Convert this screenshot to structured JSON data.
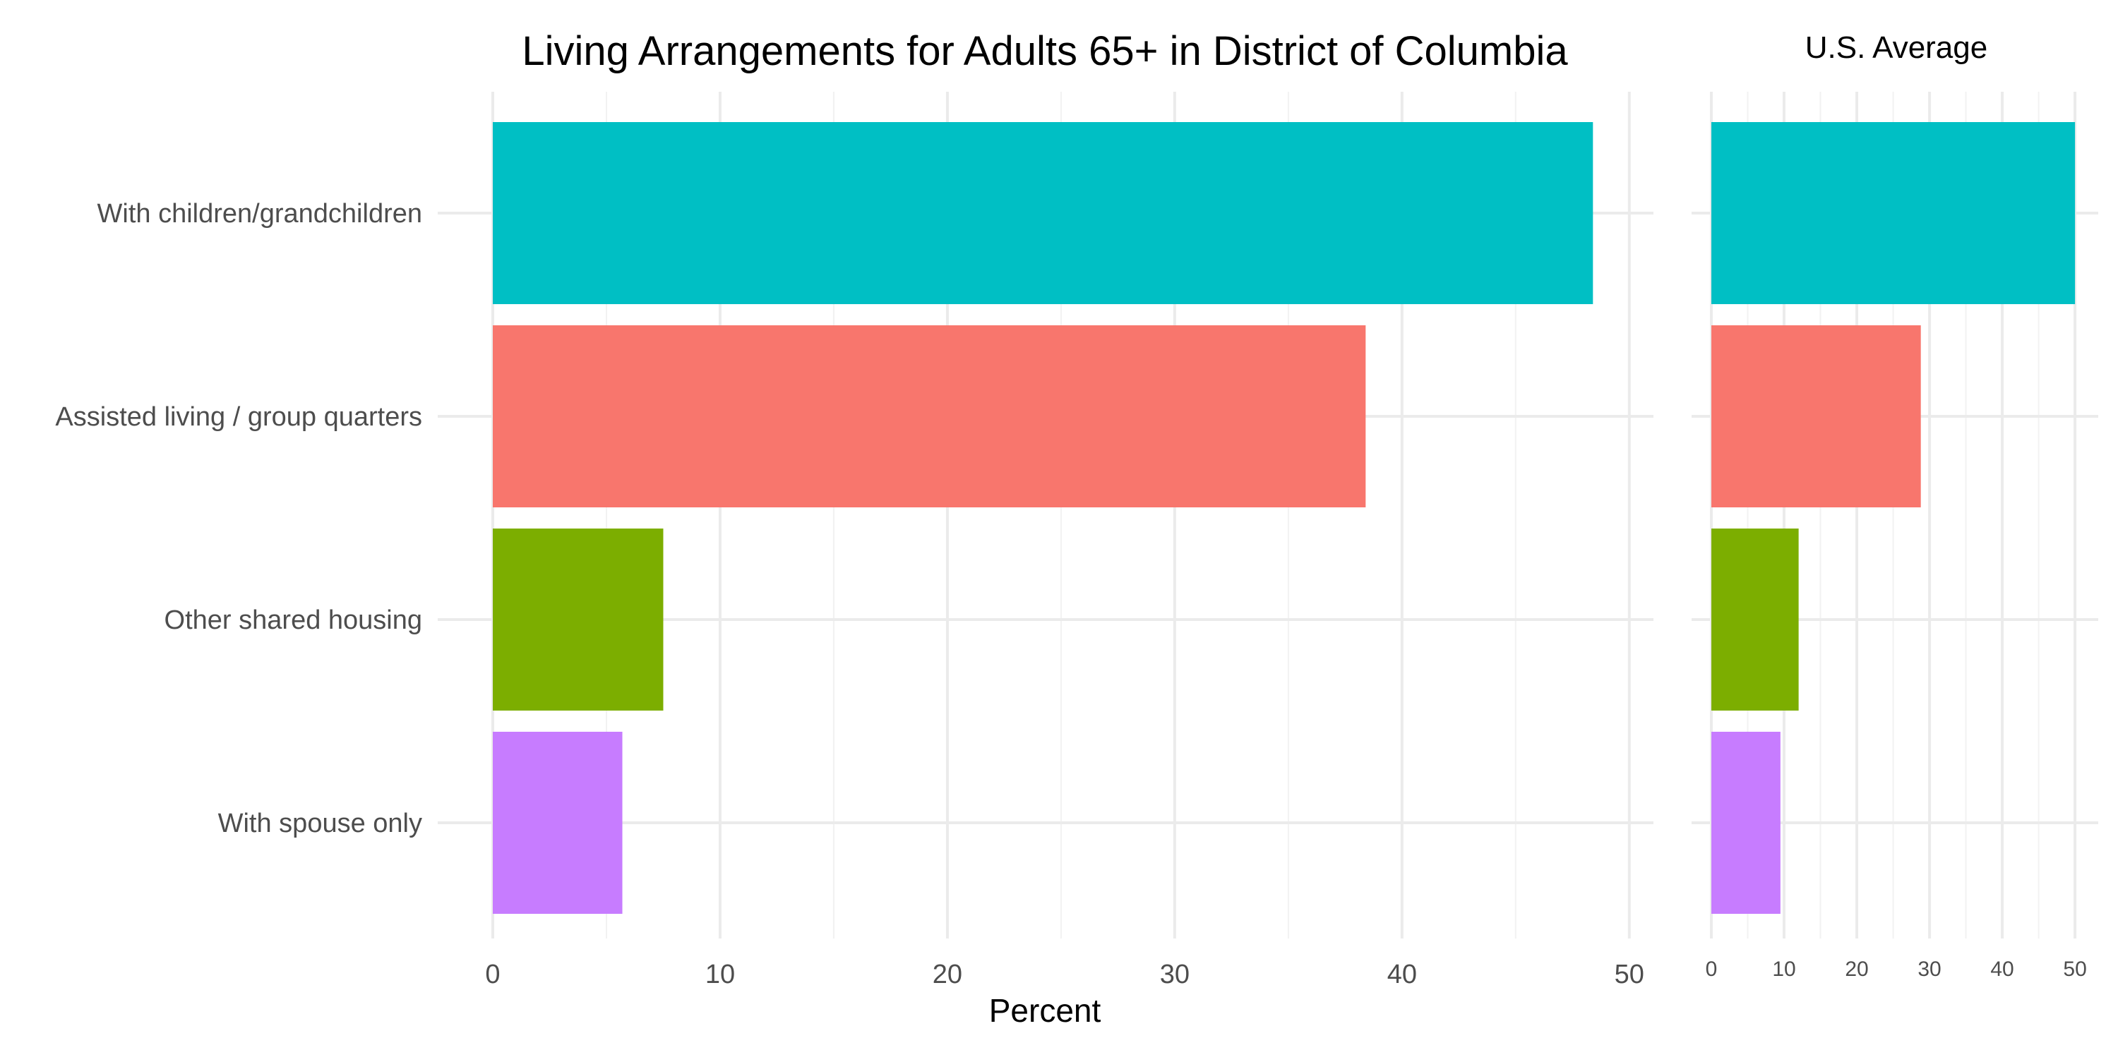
{
  "chart_data": [
    {
      "type": "bar",
      "orientation": "horizontal",
      "title": "Living Arrangements for Adults 65+ in District of Columbia",
      "xlabel": "Percent",
      "ylabel": "",
      "categories": [
        "With children/grandchildren",
        "Assisted living / group quarters",
        "Other shared housing",
        "With spouse only"
      ],
      "values": [
        48.4,
        38.4,
        7.5,
        5.7
      ],
      "colors": [
        "#00BFC4",
        "#F8766D",
        "#7CAE00",
        "#C77CFF"
      ],
      "xlim": [
        0,
        51
      ],
      "xticks": [
        0,
        10,
        20,
        30,
        40,
        50
      ],
      "grid": true
    },
    {
      "type": "bar",
      "orientation": "horizontal",
      "title": "U.S. Average",
      "xlabel": "",
      "ylabel": "",
      "categories": [
        "With children/grandchildren",
        "Assisted living / group quarters",
        "Other shared housing",
        "With spouse only"
      ],
      "values": [
        50.0,
        28.8,
        12.0,
        9.5
      ],
      "colors": [
        "#00BFC4",
        "#F8766D",
        "#7CAE00",
        "#C77CFF"
      ],
      "xlim": [
        0,
        53
      ],
      "xticks": [
        0,
        10,
        20,
        30,
        40,
        50
      ],
      "grid": true
    }
  ]
}
